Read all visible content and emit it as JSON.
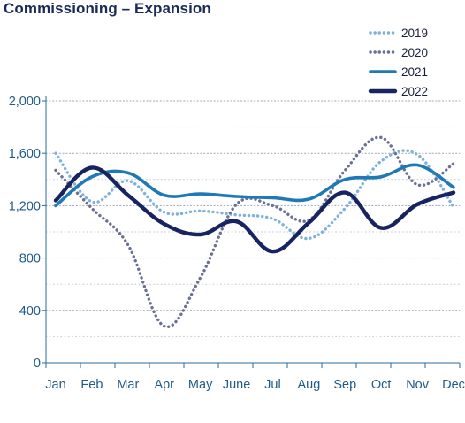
{
  "chart_data": {
    "type": "line",
    "title": "Commissioning – Expansion",
    "categories": [
      "Jan",
      "Feb",
      "Mar",
      "Apr",
      "May",
      "June",
      "Jul",
      "Aug",
      "Sep",
      "Oct",
      "Nov",
      "Dec"
    ],
    "yticks": [
      "0",
      "400",
      "800",
      "1,200",
      "1,600",
      "2,000"
    ],
    "ylim": [
      0,
      2000
    ],
    "grid": "horizontal dotted",
    "legend_position": "top-right",
    "series": [
      {
        "name": "2019",
        "color": "#7fb2d8",
        "style": "dotted",
        "values": [
          1600,
          1230,
          1390,
          1150,
          1160,
          1130,
          1100,
          950,
          1180,
          1540,
          1590,
          1190
        ]
      },
      {
        "name": "2020",
        "color": "#6b7095",
        "style": "dotted",
        "values": [
          1470,
          1180,
          900,
          280,
          650,
          1210,
          1200,
          1090,
          1470,
          1720,
          1360,
          1520
        ]
      },
      {
        "name": "2021",
        "color": "#1f79b5",
        "style": "solid-thin",
        "values": [
          1200,
          1420,
          1450,
          1280,
          1290,
          1270,
          1260,
          1250,
          1400,
          1420,
          1510,
          1340
        ]
      },
      {
        "name": "2022",
        "color": "#17245f",
        "style": "solid-thick",
        "values": [
          1240,
          1490,
          1280,
          1060,
          980,
          1080,
          850,
          1070,
          1300,
          1030,
          1210,
          1300
        ]
      }
    ]
  }
}
